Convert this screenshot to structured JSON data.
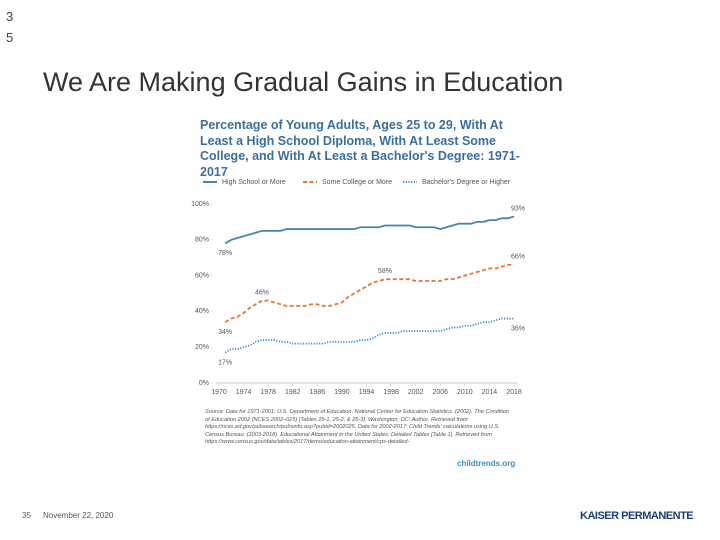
{
  "slide": {
    "corner_number": [
      "3",
      "5"
    ],
    "title": "We Are Making Gradual Gains in Education",
    "page_number": "35",
    "date": "November 22, 2020",
    "logo": "KAISER PERMANENTE"
  },
  "chart_data": {
    "type": "line",
    "title": "Percentage of Young Adults, Ages 25 to 29, With At Least a High School Diploma, With At Least Some College, and With At Least a Bachelor's Degree: 1971-2017",
    "x": [
      1971,
      1972,
      1973,
      1974,
      1975,
      1976,
      1977,
      1978,
      1979,
      1980,
      1981,
      1982,
      1983,
      1984,
      1985,
      1986,
      1987,
      1988,
      1989,
      1990,
      1991,
      1992,
      1993,
      1994,
      1995,
      1996,
      1997,
      1998,
      1999,
      2000,
      2001,
      2002,
      2003,
      2004,
      2005,
      2006,
      2007,
      2008,
      2009,
      2010,
      2011,
      2012,
      2013,
      2014,
      2015,
      2016,
      2017,
      2018
    ],
    "series": [
      {
        "name": "High School or More",
        "color": "#4a84a6",
        "dash": "solid",
        "values": [
          78,
          80,
          81,
          82,
          83,
          84,
          85,
          85,
          85,
          85,
          86,
          86,
          86,
          86,
          86,
          86,
          86,
          86,
          86,
          86,
          86,
          86,
          87,
          87,
          87,
          87,
          88,
          88,
          88,
          88,
          88,
          87,
          87,
          87,
          87,
          86,
          87,
          88,
          89,
          89,
          89,
          90,
          90,
          91,
          91,
          92,
          92,
          93
        ],
        "value_labels": [
          "78%",
          null,
          null,
          null,
          null,
          null,
          null,
          null,
          null,
          null,
          null,
          null,
          null,
          null,
          null,
          null,
          null,
          null,
          null,
          null,
          null,
          null,
          null,
          null,
          null,
          null,
          null,
          null,
          null,
          null,
          null,
          null,
          null,
          null,
          null,
          null,
          null,
          null,
          null,
          null,
          null,
          null,
          null,
          null,
          null,
          null,
          null,
          "93%"
        ]
      },
      {
        "name": "Some College or More",
        "color": "#e8743b",
        "dash": "dashed",
        "values": [
          34,
          36,
          37,
          39,
          42,
          44,
          46,
          46,
          45,
          44,
          43,
          43,
          43,
          43,
          44,
          44,
          43,
          43,
          44,
          45,
          48,
          50,
          52,
          54,
          56,
          57,
          58,
          58,
          58,
          58,
          58,
          57,
          57,
          57,
          57,
          57,
          58,
          58,
          59,
          60,
          61,
          62,
          63,
          64,
          64,
          65,
          66,
          66
        ],
        "value_labels": [
          "34%",
          null,
          null,
          null,
          null,
          null,
          "46%",
          null,
          null,
          null,
          null,
          null,
          null,
          null,
          null,
          null,
          null,
          null,
          null,
          null,
          null,
          null,
          null,
          null,
          null,
          null,
          "58%",
          null,
          null,
          null,
          null,
          null,
          null,
          null,
          null,
          null,
          null,
          null,
          null,
          null,
          null,
          null,
          null,
          null,
          null,
          null,
          null,
          "66%"
        ]
      },
      {
        "name": "Bachelor's Degree or Higher",
        "color": "#3a8fc4",
        "dash": "dotted",
        "values": [
          17,
          19,
          19,
          20,
          21,
          23,
          24,
          24,
          24,
          23,
          23,
          22,
          22,
          22,
          22,
          22,
          22,
          23,
          23,
          23,
          23,
          23,
          24,
          24,
          25,
          27,
          28,
          28,
          28,
          29,
          29,
          29,
          29,
          29,
          29,
          29,
          30,
          31,
          31,
          32,
          32,
          33,
          34,
          34,
          35,
          36,
          36,
          36
        ],
        "value_labels": [
          "17%",
          null,
          null,
          null,
          null,
          null,
          null,
          null,
          null,
          null,
          null,
          null,
          null,
          null,
          null,
          null,
          null,
          null,
          null,
          null,
          null,
          null,
          null,
          null,
          null,
          null,
          null,
          null,
          null,
          null,
          null,
          null,
          null,
          null,
          null,
          null,
          null,
          null,
          null,
          null,
          null,
          null,
          null,
          null,
          null,
          null,
          null,
          "36%"
        ]
      }
    ],
    "xlim": [
      1970,
      2018
    ],
    "xticks": [
      1970,
      1974,
      1978,
      1982,
      1986,
      1990,
      1994,
      1998,
      2002,
      2006,
      2010,
      2014,
      2018
    ],
    "ylim": [
      0,
      100
    ],
    "yticks": [
      {
        "value": 0,
        "label": "0%"
      },
      {
        "value": 20,
        "label": "20%"
      },
      {
        "value": 40,
        "label": "40%"
      },
      {
        "value": 60,
        "label": "60%"
      },
      {
        "value": 80,
        "label": "80%"
      },
      {
        "value": 100,
        "label": "100%"
      }
    ],
    "grid": false,
    "source": "Source: Data for 1971-2001: U.S. Department of Education, National Center for Education Statistics. (2002). The Condition of Education 2002 (NCES 2002–025) [Tables 25-1, 25-2, & 25-3]. Washington, DC: Author. Retrieved from https://nces.ed.gov/pubsearch/pubsinfo.asp?pubid=2002025. Data for 2002-2017: Child Trends' calculations using U.S. Census Bureau. (2003-2018). Educational Attainment in the United States: Detailed Tables [Table 1]. Retrieved from https://www.census.gov/data/tables/2017/demo/education-attainment/cps-detailed-",
    "credit": "childtrends.org"
  }
}
